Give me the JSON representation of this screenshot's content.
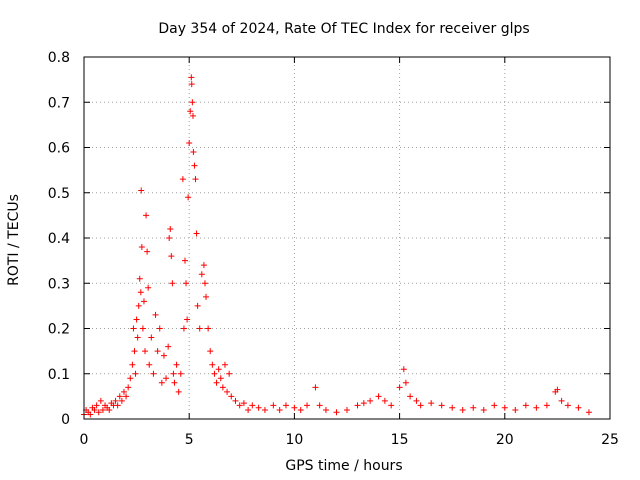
{
  "chart_data": {
    "type": "scatter",
    "title": "Day 354 of 2024, Rate Of TEC Index for receiver glps",
    "xlabel": "GPS time / hours",
    "ylabel": "ROTI / TECUs",
    "xlim": [
      0,
      25
    ],
    "ylim": [
      0,
      0.8
    ],
    "x_ticks": [
      0,
      5,
      10,
      15,
      20,
      25
    ],
    "y_ticks": [
      0,
      0.1,
      0.2,
      0.3,
      0.4,
      0.5,
      0.6,
      0.7,
      0.8
    ],
    "x_tick_labels": [
      "0",
      "5",
      "10",
      "15",
      "20",
      "25"
    ],
    "y_tick_labels": [
      "0",
      "0.1",
      "0.2",
      "0.3",
      "0.4",
      "0.5",
      "0.6",
      "0.7",
      "0.8"
    ],
    "grid": true,
    "marker": "+",
    "marker_color": "#ff0000",
    "series": [
      {
        "name": "ROTI",
        "points": [
          [
            0.0,
            0.01
          ],
          [
            0.1,
            0.02
          ],
          [
            0.2,
            0.015
          ],
          [
            0.3,
            0.01
          ],
          [
            0.4,
            0.025
          ],
          [
            0.5,
            0.02
          ],
          [
            0.6,
            0.03
          ],
          [
            0.7,
            0.015
          ],
          [
            0.8,
            0.04
          ],
          [
            0.9,
            0.02
          ],
          [
            1.0,
            0.03
          ],
          [
            1.1,
            0.025
          ],
          [
            1.2,
            0.02
          ],
          [
            1.3,
            0.035
          ],
          [
            1.4,
            0.03
          ],
          [
            1.5,
            0.04
          ],
          [
            1.6,
            0.03
          ],
          [
            1.7,
            0.05
          ],
          [
            1.8,
            0.04
          ],
          [
            1.9,
            0.06
          ],
          [
            2.0,
            0.05
          ],
          [
            2.1,
            0.07
          ],
          [
            2.2,
            0.09
          ],
          [
            2.3,
            0.12
          ],
          [
            2.35,
            0.2
          ],
          [
            2.4,
            0.15
          ],
          [
            2.45,
            0.1
          ],
          [
            2.5,
            0.22
          ],
          [
            2.55,
            0.18
          ],
          [
            2.6,
            0.25
          ],
          [
            2.65,
            0.31
          ],
          [
            2.7,
            0.28
          ],
          [
            2.72,
            0.505
          ],
          [
            2.75,
            0.38
          ],
          [
            2.8,
            0.2
          ],
          [
            2.85,
            0.26
          ],
          [
            2.9,
            0.15
          ],
          [
            2.95,
            0.45
          ],
          [
            3.0,
            0.37
          ],
          [
            3.05,
            0.29
          ],
          [
            3.1,
            0.12
          ],
          [
            3.2,
            0.18
          ],
          [
            3.3,
            0.1
          ],
          [
            3.4,
            0.23
          ],
          [
            3.5,
            0.15
          ],
          [
            3.6,
            0.2
          ],
          [
            3.7,
            0.08
          ],
          [
            3.8,
            0.14
          ],
          [
            3.9,
            0.09
          ],
          [
            4.0,
            0.16
          ],
          [
            4.05,
            0.4
          ],
          [
            4.1,
            0.42
          ],
          [
            4.15,
            0.36
          ],
          [
            4.2,
            0.3
          ],
          [
            4.25,
            0.1
          ],
          [
            4.3,
            0.08
          ],
          [
            4.4,
            0.12
          ],
          [
            4.5,
            0.06
          ],
          [
            4.6,
            0.1
          ],
          [
            4.7,
            0.53
          ],
          [
            4.75,
            0.2
          ],
          [
            4.8,
            0.35
          ],
          [
            4.85,
            0.3
          ],
          [
            4.9,
            0.22
          ],
          [
            4.95,
            0.49
          ],
          [
            5.0,
            0.61
          ],
          [
            5.05,
            0.68
          ],
          [
            5.1,
            0.755
          ],
          [
            5.12,
            0.74
          ],
          [
            5.15,
            0.7
          ],
          [
            5.18,
            0.67
          ],
          [
            5.2,
            0.59
          ],
          [
            5.25,
            0.56
          ],
          [
            5.3,
            0.53
          ],
          [
            5.35,
            0.41
          ],
          [
            5.4,
            0.25
          ],
          [
            5.5,
            0.2
          ],
          [
            5.6,
            0.32
          ],
          [
            5.7,
            0.34
          ],
          [
            5.75,
            0.3
          ],
          [
            5.8,
            0.27
          ],
          [
            5.9,
            0.2
          ],
          [
            6.0,
            0.15
          ],
          [
            6.1,
            0.12
          ],
          [
            6.2,
            0.1
          ],
          [
            6.3,
            0.08
          ],
          [
            6.4,
            0.11
          ],
          [
            6.5,
            0.09
          ],
          [
            6.6,
            0.07
          ],
          [
            6.7,
            0.12
          ],
          [
            6.8,
            0.06
          ],
          [
            6.9,
            0.1
          ],
          [
            7.0,
            0.05
          ],
          [
            7.2,
            0.04
          ],
          [
            7.4,
            0.03
          ],
          [
            7.6,
            0.035
          ],
          [
            7.8,
            0.02
          ],
          [
            8.0,
            0.03
          ],
          [
            8.3,
            0.025
          ],
          [
            8.6,
            0.02
          ],
          [
            9.0,
            0.03
          ],
          [
            9.3,
            0.02
          ],
          [
            9.6,
            0.03
          ],
          [
            10.0,
            0.025
          ],
          [
            10.3,
            0.02
          ],
          [
            10.6,
            0.03
          ],
          [
            11.0,
            0.07
          ],
          [
            11.2,
            0.03
          ],
          [
            11.5,
            0.02
          ],
          [
            12.0,
            0.015
          ],
          [
            12.5,
            0.02
          ],
          [
            13.0,
            0.03
          ],
          [
            13.3,
            0.035
          ],
          [
            13.6,
            0.04
          ],
          [
            14.0,
            0.05
          ],
          [
            14.3,
            0.04
          ],
          [
            14.6,
            0.03
          ],
          [
            15.0,
            0.07
          ],
          [
            15.2,
            0.11
          ],
          [
            15.3,
            0.08
          ],
          [
            15.5,
            0.05
          ],
          [
            15.8,
            0.04
          ],
          [
            16.0,
            0.03
          ],
          [
            16.5,
            0.035
          ],
          [
            17.0,
            0.03
          ],
          [
            17.5,
            0.025
          ],
          [
            18.0,
            0.02
          ],
          [
            18.5,
            0.025
          ],
          [
            19.0,
            0.02
          ],
          [
            19.5,
            0.03
          ],
          [
            20.0,
            0.025
          ],
          [
            20.5,
            0.02
          ],
          [
            21.0,
            0.03
          ],
          [
            21.5,
            0.025
          ],
          [
            22.0,
            0.03
          ],
          [
            22.4,
            0.06
          ],
          [
            22.5,
            0.065
          ],
          [
            22.7,
            0.04
          ],
          [
            23.0,
            0.03
          ],
          [
            23.5,
            0.025
          ],
          [
            24.0,
            0.015
          ]
        ]
      }
    ]
  }
}
